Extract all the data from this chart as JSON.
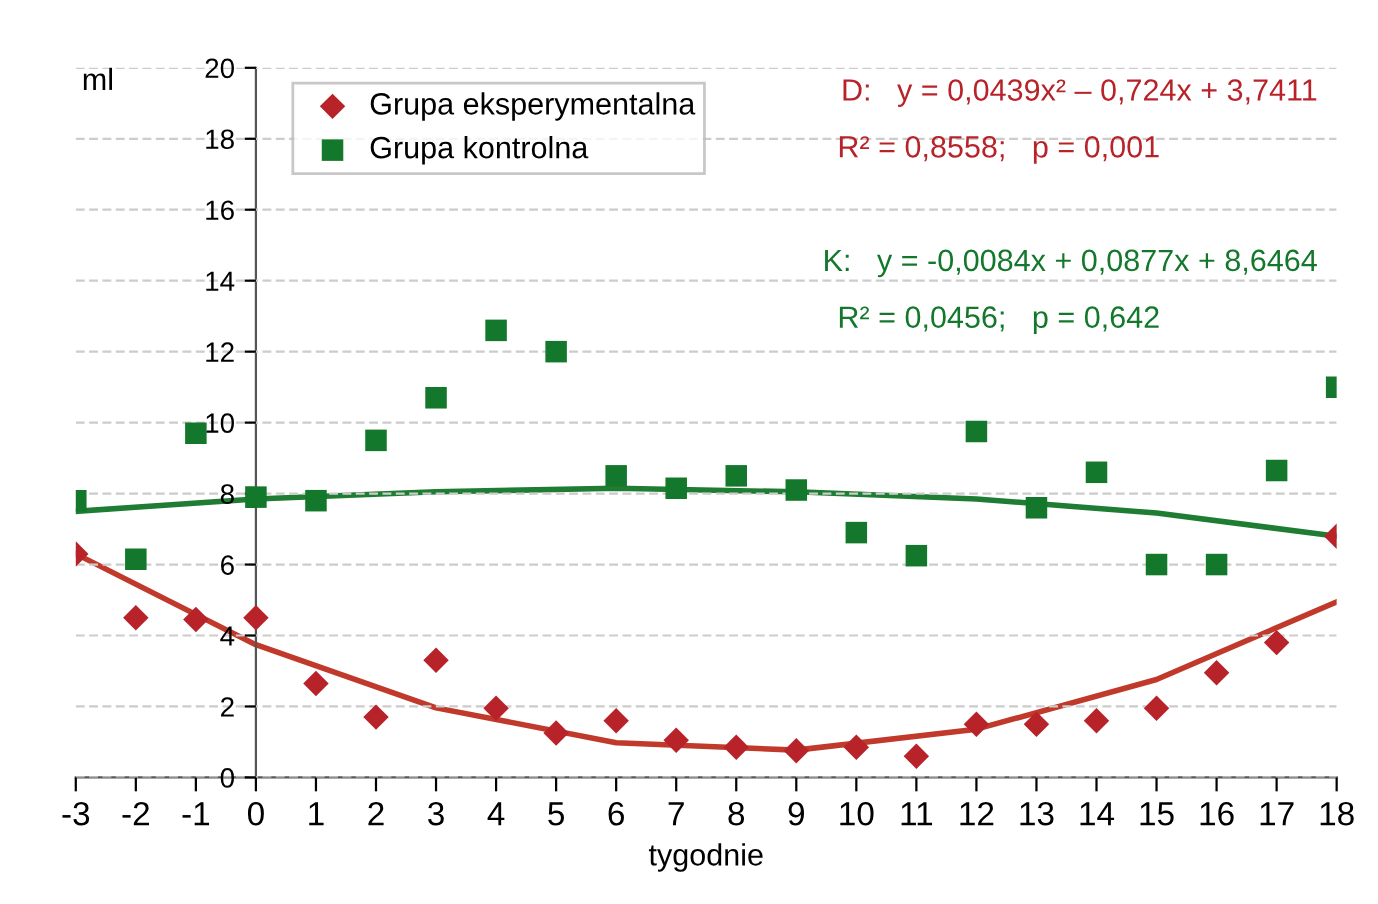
{
  "chart_data": {
    "type": "scatter",
    "xlabel": "tygodnie",
    "ylabel": "ml",
    "x": [
      -3,
      -2,
      -1,
      0,
      1,
      2,
      3,
      4,
      5,
      6,
      7,
      8,
      9,
      10,
      11,
      12,
      13,
      14,
      15,
      16,
      17,
      18
    ],
    "xlim": [
      -3,
      18
    ],
    "xticks": [
      -3,
      -2,
      -1,
      0,
      1,
      2,
      3,
      4,
      5,
      6,
      7,
      8,
      9,
      10,
      11,
      12,
      13,
      14,
      15,
      16,
      17,
      18
    ],
    "ylim": [
      0,
      20
    ],
    "yticks": [
      0,
      2,
      4,
      6,
      8,
      10,
      12,
      14,
      16,
      18,
      20
    ],
    "grid": "y",
    "legend": "top left",
    "series": [
      {
        "name": "Grupa eksperymentalna",
        "marker": "diamond",
        "color": "#b8232a",
        "values": [
          6.3,
          4.5,
          4.45,
          4.5,
          2.65,
          1.7,
          3.3,
          1.95,
          1.25,
          1.6,
          1.05,
          0.85,
          0.75,
          0.85,
          0.6,
          1.5,
          1.5,
          1.6,
          1.95,
          2.95,
          3.8,
          6.8
        ]
      },
      {
        "name": "Grupa kontrolna",
        "marker": "square",
        "color": "#13782b",
        "values": [
          7.8,
          6.15,
          9.7,
          7.9,
          7.8,
          9.5,
          10.7,
          12.6,
          12.0,
          8.5,
          8.15,
          8.5,
          8.1,
          6.9,
          6.25,
          9.75,
          7.6,
          8.6,
          6.0,
          6.0,
          8.65,
          11.0
        ]
      },
      {
        "type": "line",
        "color": "#c0392b",
        "x": [
          -3,
          0,
          3,
          6,
          9,
          12,
          15,
          18
        ],
        "values": [
          6.3,
          3.74,
          1.96,
          0.98,
          0.77,
          1.36,
          2.76,
          4.95
        ]
      },
      {
        "type": "line",
        "color": "#1e7d32",
        "x": [
          -3,
          0,
          3,
          6,
          9,
          12,
          15,
          18
        ],
        "values": [
          7.5,
          7.85,
          8.05,
          8.15,
          8.05,
          7.85,
          7.45,
          6.8
        ]
      }
    ],
    "annotations": [
      "D:   y = 0,0439x² – 0,724x + 3,7411",
      "R² = 0,8558;   p = 0,001",
      "K:   y = -0,0084x + 0,0877x + 8,6464",
      "R² = 0,0456;   p = 0,642"
    ]
  }
}
